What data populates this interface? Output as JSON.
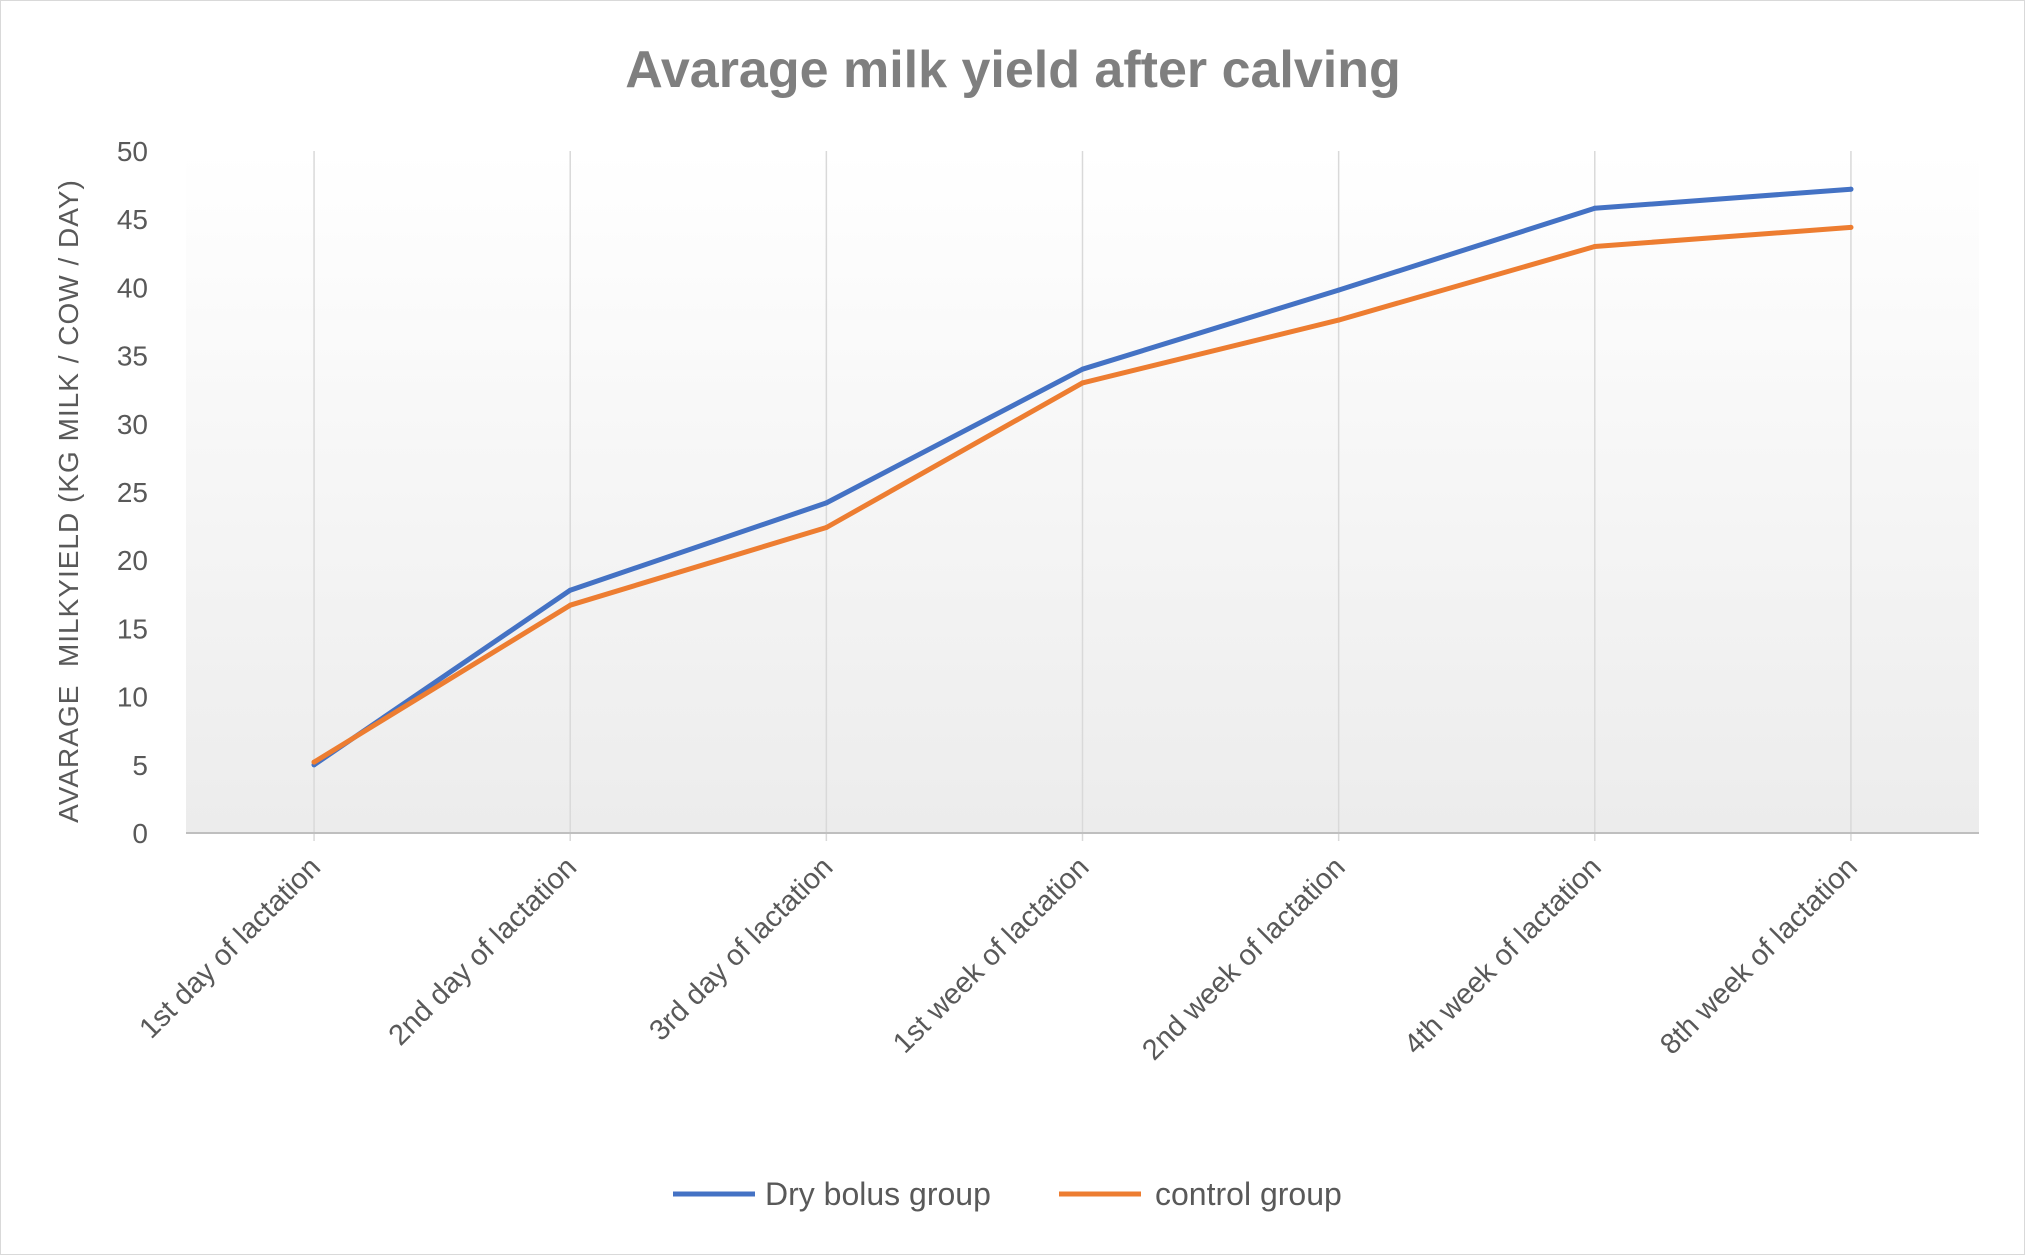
{
  "chart_data": {
    "type": "line",
    "title": "Avarage milk yield after calving",
    "xlabel": "",
    "ylabel": "AVARAGE  MILKYIELD (KG MILK / COW / DAY)",
    "ylim": [
      0,
      50
    ],
    "yticks": [
      0,
      5,
      10,
      15,
      20,
      25,
      30,
      35,
      40,
      45,
      50
    ],
    "categories": [
      "1st day of lactation",
      "2nd day of lactation",
      "3rd day of lactation",
      "1st week of lactation",
      "2nd week of lactation",
      "4th week of lactation",
      "8th week of lactation"
    ],
    "series": [
      {
        "name": "Dry bolus group",
        "color": "#4472c4",
        "values": [
          5.0,
          17.8,
          24.2,
          34.0,
          39.8,
          45.8,
          47.2
        ]
      },
      {
        "name": "control group",
        "color": "#ed7d31",
        "values": [
          5.2,
          16.7,
          22.4,
          33.0,
          37.6,
          43.0,
          44.4
        ]
      }
    ],
    "grid": "vertical",
    "legend_position": "bottom"
  }
}
